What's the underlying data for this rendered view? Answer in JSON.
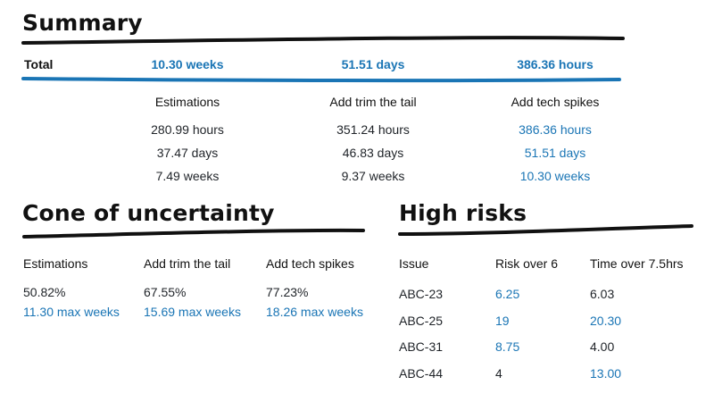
{
  "summary": {
    "title": "Summary",
    "total_label": "Total",
    "totals": [
      "10.30 weeks",
      "51.51 days",
      "386.36 hours"
    ],
    "columns": [
      {
        "header": "Estimations",
        "values": [
          "280.99 hours",
          "37.47 days",
          "7.49 weeks"
        ],
        "highlight": false
      },
      {
        "header": "Add trim the tail",
        "values": [
          "351.24 hours",
          "46.83 days",
          "9.37 weeks"
        ],
        "highlight": false
      },
      {
        "header": "Add tech spikes",
        "values": [
          "386.36 hours",
          "51.51 days",
          "10.30 weeks"
        ],
        "highlight": true
      }
    ]
  },
  "cone": {
    "title": "Cone of uncertainty",
    "columns": [
      {
        "header": "Estimations",
        "percent": "50.82%",
        "max": "11.30 max weeks"
      },
      {
        "header": "Add trim the tail",
        "percent": "67.55%",
        "max": "15.69 max weeks"
      },
      {
        "header": "Add tech spikes",
        "percent": "77.23%",
        "max": "18.26 max weeks"
      }
    ]
  },
  "risks": {
    "title": "High risks",
    "headers": [
      "Issue",
      "Risk over 6",
      "Time over 7.5hrs"
    ],
    "rows": [
      {
        "issue": "ABC-23",
        "risk": "6.25",
        "time": "6.03",
        "risk_hl": true,
        "time_hl": false
      },
      {
        "issue": "ABC-25",
        "risk": "19",
        "time": "20.30",
        "risk_hl": true,
        "time_hl": true
      },
      {
        "issue": "ABC-31",
        "risk": "8.75",
        "time": "4.00",
        "risk_hl": true,
        "time_hl": false
      },
      {
        "issue": "ABC-44",
        "risk": "4",
        "time": "13.00",
        "risk_hl": false,
        "time_hl": true
      }
    ]
  },
  "colors": {
    "accent": "#1a75b5",
    "ink": "#111111"
  }
}
